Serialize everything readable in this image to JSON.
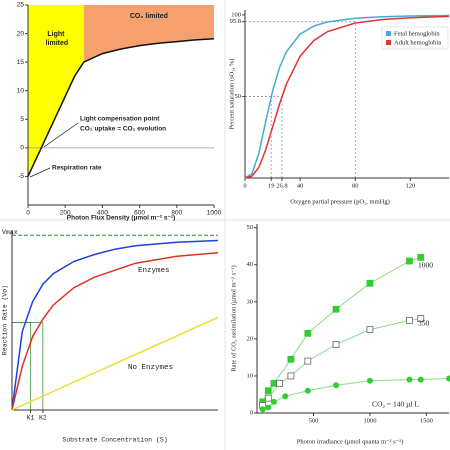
{
  "chart_data": [
    {
      "type": "line",
      "x_label": "Photon Flux Density (µmol m⁻² s⁻¹)",
      "x": [
        0,
        50,
        100,
        150,
        200,
        250,
        300,
        400,
        500,
        600,
        700,
        800,
        900,
        1000
      ],
      "series": [
        {
          "color": "#111111",
          "values": [
            -5,
            -1.5,
            2,
            5.5,
            9,
            12.5,
            15,
            16.5,
            17.3,
            17.9,
            18.3,
            18.6,
            18.9,
            19.1
          ]
        }
      ],
      "regions": [
        {
          "name": "Light limited",
          "from": 0,
          "to": 300,
          "color": "#ffff00"
        },
        {
          "name": "CO₂ limited",
          "from": 300,
          "to": 1000,
          "color": "#f5a06e"
        }
      ],
      "annotations": [
        "Light compensation point",
        "CO₂ uptake = CO₂ evolution",
        "Respiration rate"
      ],
      "xlim": [
        0,
        1000
      ],
      "ylim": [
        -10,
        25
      ],
      "xticks": [
        0,
        200,
        400,
        600,
        800,
        1000
      ],
      "yticks": [
        -5,
        0,
        5,
        10,
        15,
        20,
        25
      ],
      "zero_line": true
    },
    {
      "type": "line",
      "x_label": "Oxygen partial pressure (pO₂, mmHg)",
      "y_label": "Percent saturation (sO₂, %)",
      "x": [
        0,
        5,
        10,
        15,
        20,
        25,
        30,
        40,
        50,
        60,
        80,
        100,
        120,
        148
      ],
      "series": [
        {
          "name": "Fetal hemoglobin",
          "color": "#4aa8d8",
          "values": [
            0,
            2.6,
            15.0,
            34.6,
            53.4,
            67.7,
            77.4,
            88.2,
            93.2,
            95.7,
            98.0,
            98.9,
            99.3,
            99.6
          ]
        },
        {
          "name": "Adult hemoglobin",
          "color": "#e03434",
          "values": [
            0,
            1.1,
            6.5,
            17.3,
            31.2,
            45.3,
            57.6,
            74.7,
            84.3,
            89.8,
            95.0,
            97.2,
            98.3,
            99.1
          ]
        }
      ],
      "reference_points": [
        [
          19,
          50
        ],
        [
          26.8,
          50
        ],
        [
          80,
          95.8
        ]
      ],
      "xlim": [
        0,
        148
      ],
      "ylim": [
        0,
        103
      ],
      "xticks": [
        0,
        19,
        26.8,
        40,
        80,
        120
      ],
      "yticks": [
        50,
        95.8,
        100
      ],
      "legend": "top-right"
    },
    {
      "type": "line",
      "x_label": "Substrate Concentration (S)",
      "y_label": "Reaction Rate (Vo)",
      "x": [
        0,
        0.5,
        1,
        1.5,
        2,
        3,
        4,
        5,
        6,
        7,
        8,
        9,
        10
      ],
      "series": [
        {
          "color": "#2040e0",
          "values": [
            0,
            0.45,
            0.62,
            0.72,
            0.78,
            0.85,
            0.89,
            0.92,
            0.94,
            0.95,
            0.96,
            0.965,
            0.97
          ]
        },
        {
          "name": "Enzymes",
          "color": "#e03020",
          "values": [
            0,
            0.25,
            0.42,
            0.52,
            0.6,
            0.7,
            0.76,
            0.8,
            0.84,
            0.86,
            0.88,
            0.89,
            0.9
          ]
        },
        {
          "name": "No Enzymes",
          "color": "#e8e030",
          "values": [
            0,
            0.027,
            0.053,
            0.08,
            0.106,
            0.159,
            0.212,
            0.265,
            0.318,
            0.371,
            0.424,
            0.477,
            0.53
          ]
        }
      ],
      "reference_points": [
        [
          0.9,
          0.5
        ],
        [
          1.5,
          0.5
        ]
      ],
      "xlim": [
        0,
        10
      ],
      "ylim": [
        0,
        1.03
      ],
      "xticks": [
        {
          "value": 0.9,
          "label": "K1"
        },
        {
          "value": 1.5,
          "label": "K2"
        }
      ],
      "yticks": [
        {
          "value": 1,
          "label": "Vmax"
        }
      ],
      "grid": "dashed"
    },
    {
      "type": "scatter",
      "x_label": "Photon irradiance (µmol quanta m⁻² s⁻¹)",
      "y_label": "Rate of CO₂ assimilation (µmol m⁻² s⁻¹)",
      "series": [
        {
          "name": "1000",
          "color": "#33cc33",
          "marker": "square",
          "x": [
            50,
            100,
            150,
            300,
            450,
            700,
            1000,
            1350,
            1450
          ],
          "values": [
            3,
            6,
            8,
            14.5,
            21.5,
            28,
            35,
            41,
            42
          ]
        },
        {
          "name": "350",
          "color": "#33cc33",
          "marker": "open-square",
          "x": [
            50,
            100,
            200,
            300,
            450,
            700,
            1000,
            1350,
            1450
          ],
          "values": [
            2,
            4,
            8,
            10,
            14,
            18.5,
            22.5,
            25,
            25.5
          ]
        },
        {
          "name": "CO₂ = 140 µl L",
          "color": "#33cc33",
          "marker": "circle",
          "x": [
            50,
            100,
            150,
            250,
            450,
            700,
            1000,
            1350,
            1450,
            1700
          ],
          "values": [
            1,
            1.5,
            3,
            4.5,
            6,
            7.5,
            8.7,
            9,
            9,
            9.3
          ]
        }
      ],
      "xlim": [
        0,
        1700
      ],
      "ylim": [
        0,
        51
      ],
      "xticks": [
        500,
        1000,
        1500
      ],
      "yticks": [
        0,
        10,
        20,
        30,
        40,
        50
      ]
    }
  ]
}
